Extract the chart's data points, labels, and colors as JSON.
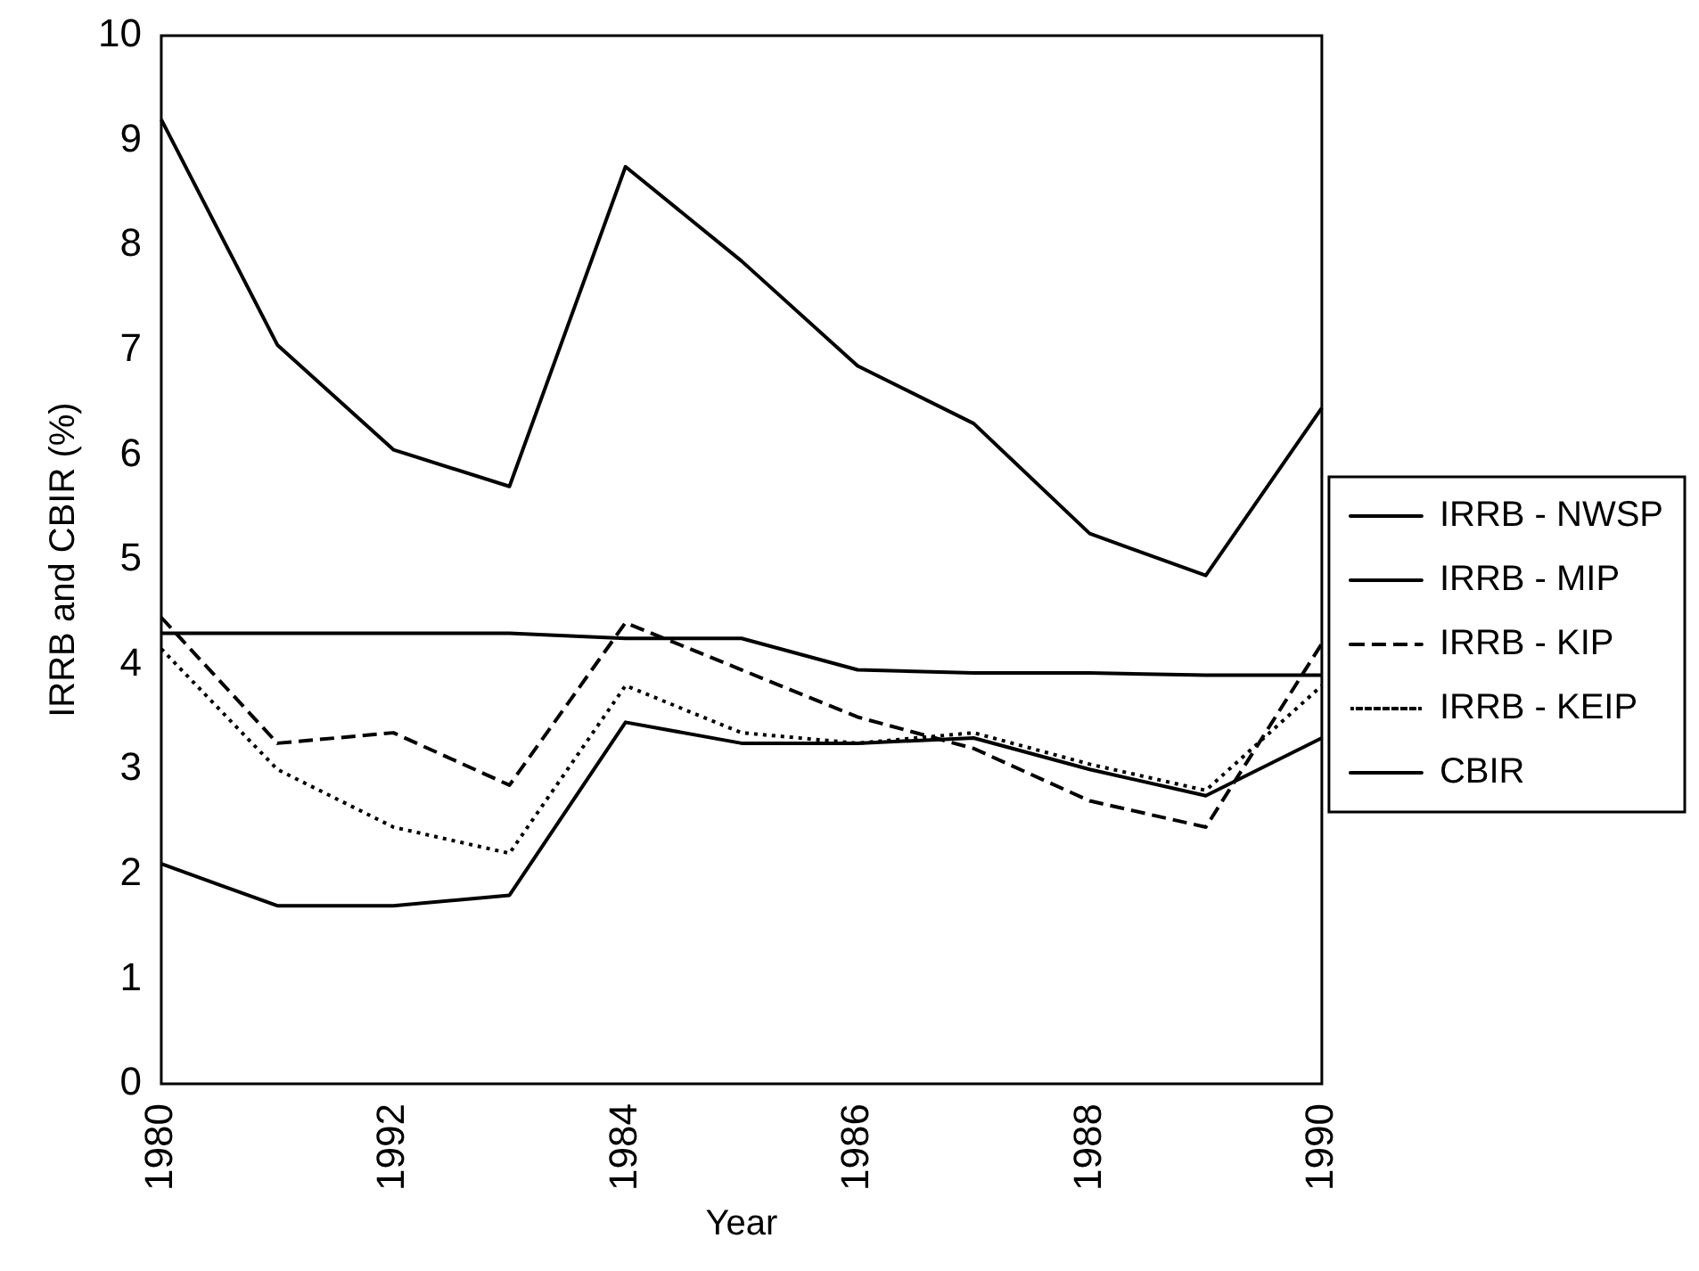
{
  "chart_data": {
    "type": "line",
    "xlabel": "Year",
    "ylabel": "IRRB and CBIR (%)",
    "categories": [
      "1980",
      null,
      "1992",
      null,
      "1984",
      null,
      "1986",
      null,
      "1988",
      null,
      "1990"
    ],
    "series": [
      {
        "name": "IRRB - NWSP",
        "color": "#000000",
        "line_style": "solid",
        "values": [
          9.2,
          7.05,
          6.05,
          5.7,
          8.75,
          7.85,
          6.85,
          6.3,
          5.25,
          4.85,
          6.45
        ]
      },
      {
        "name": "IRRB - MIP",
        "color": "#000000",
        "line_style": "solid",
        "values": [
          2.1,
          1.7,
          1.7,
          1.8,
          3.45,
          3.25,
          3.25,
          3.3,
          3.0,
          2.75,
          3.3
        ]
      },
      {
        "name": "IRRB - KIP",
        "color": "#000000",
        "line_style": "dashed",
        "values": [
          4.45,
          3.25,
          3.35,
          2.85,
          4.4,
          3.95,
          3.5,
          3.2,
          2.7,
          2.45,
          4.2
        ]
      },
      {
        "name": "IRRB - KEIP",
        "color": "#000000",
        "line_style": "dotted",
        "values": [
          4.15,
          3.0,
          2.45,
          2.2,
          3.8,
          3.35,
          3.25,
          3.35,
          3.05,
          2.8,
          3.8
        ]
      },
      {
        "name": "CBIR",
        "color": "#000000",
        "line_style": "solid",
        "values": [
          4.3,
          4.3,
          4.3,
          4.3,
          4.25,
          4.25,
          3.95,
          3.92,
          3.92,
          3.9,
          3.9
        ]
      }
    ],
    "ylim": [
      0,
      10
    ],
    "yticks": [
      0,
      1,
      2,
      3,
      4,
      5,
      6,
      7,
      8,
      9,
      10
    ],
    "grid": false,
    "legend": "right",
    "marker": "none"
  }
}
